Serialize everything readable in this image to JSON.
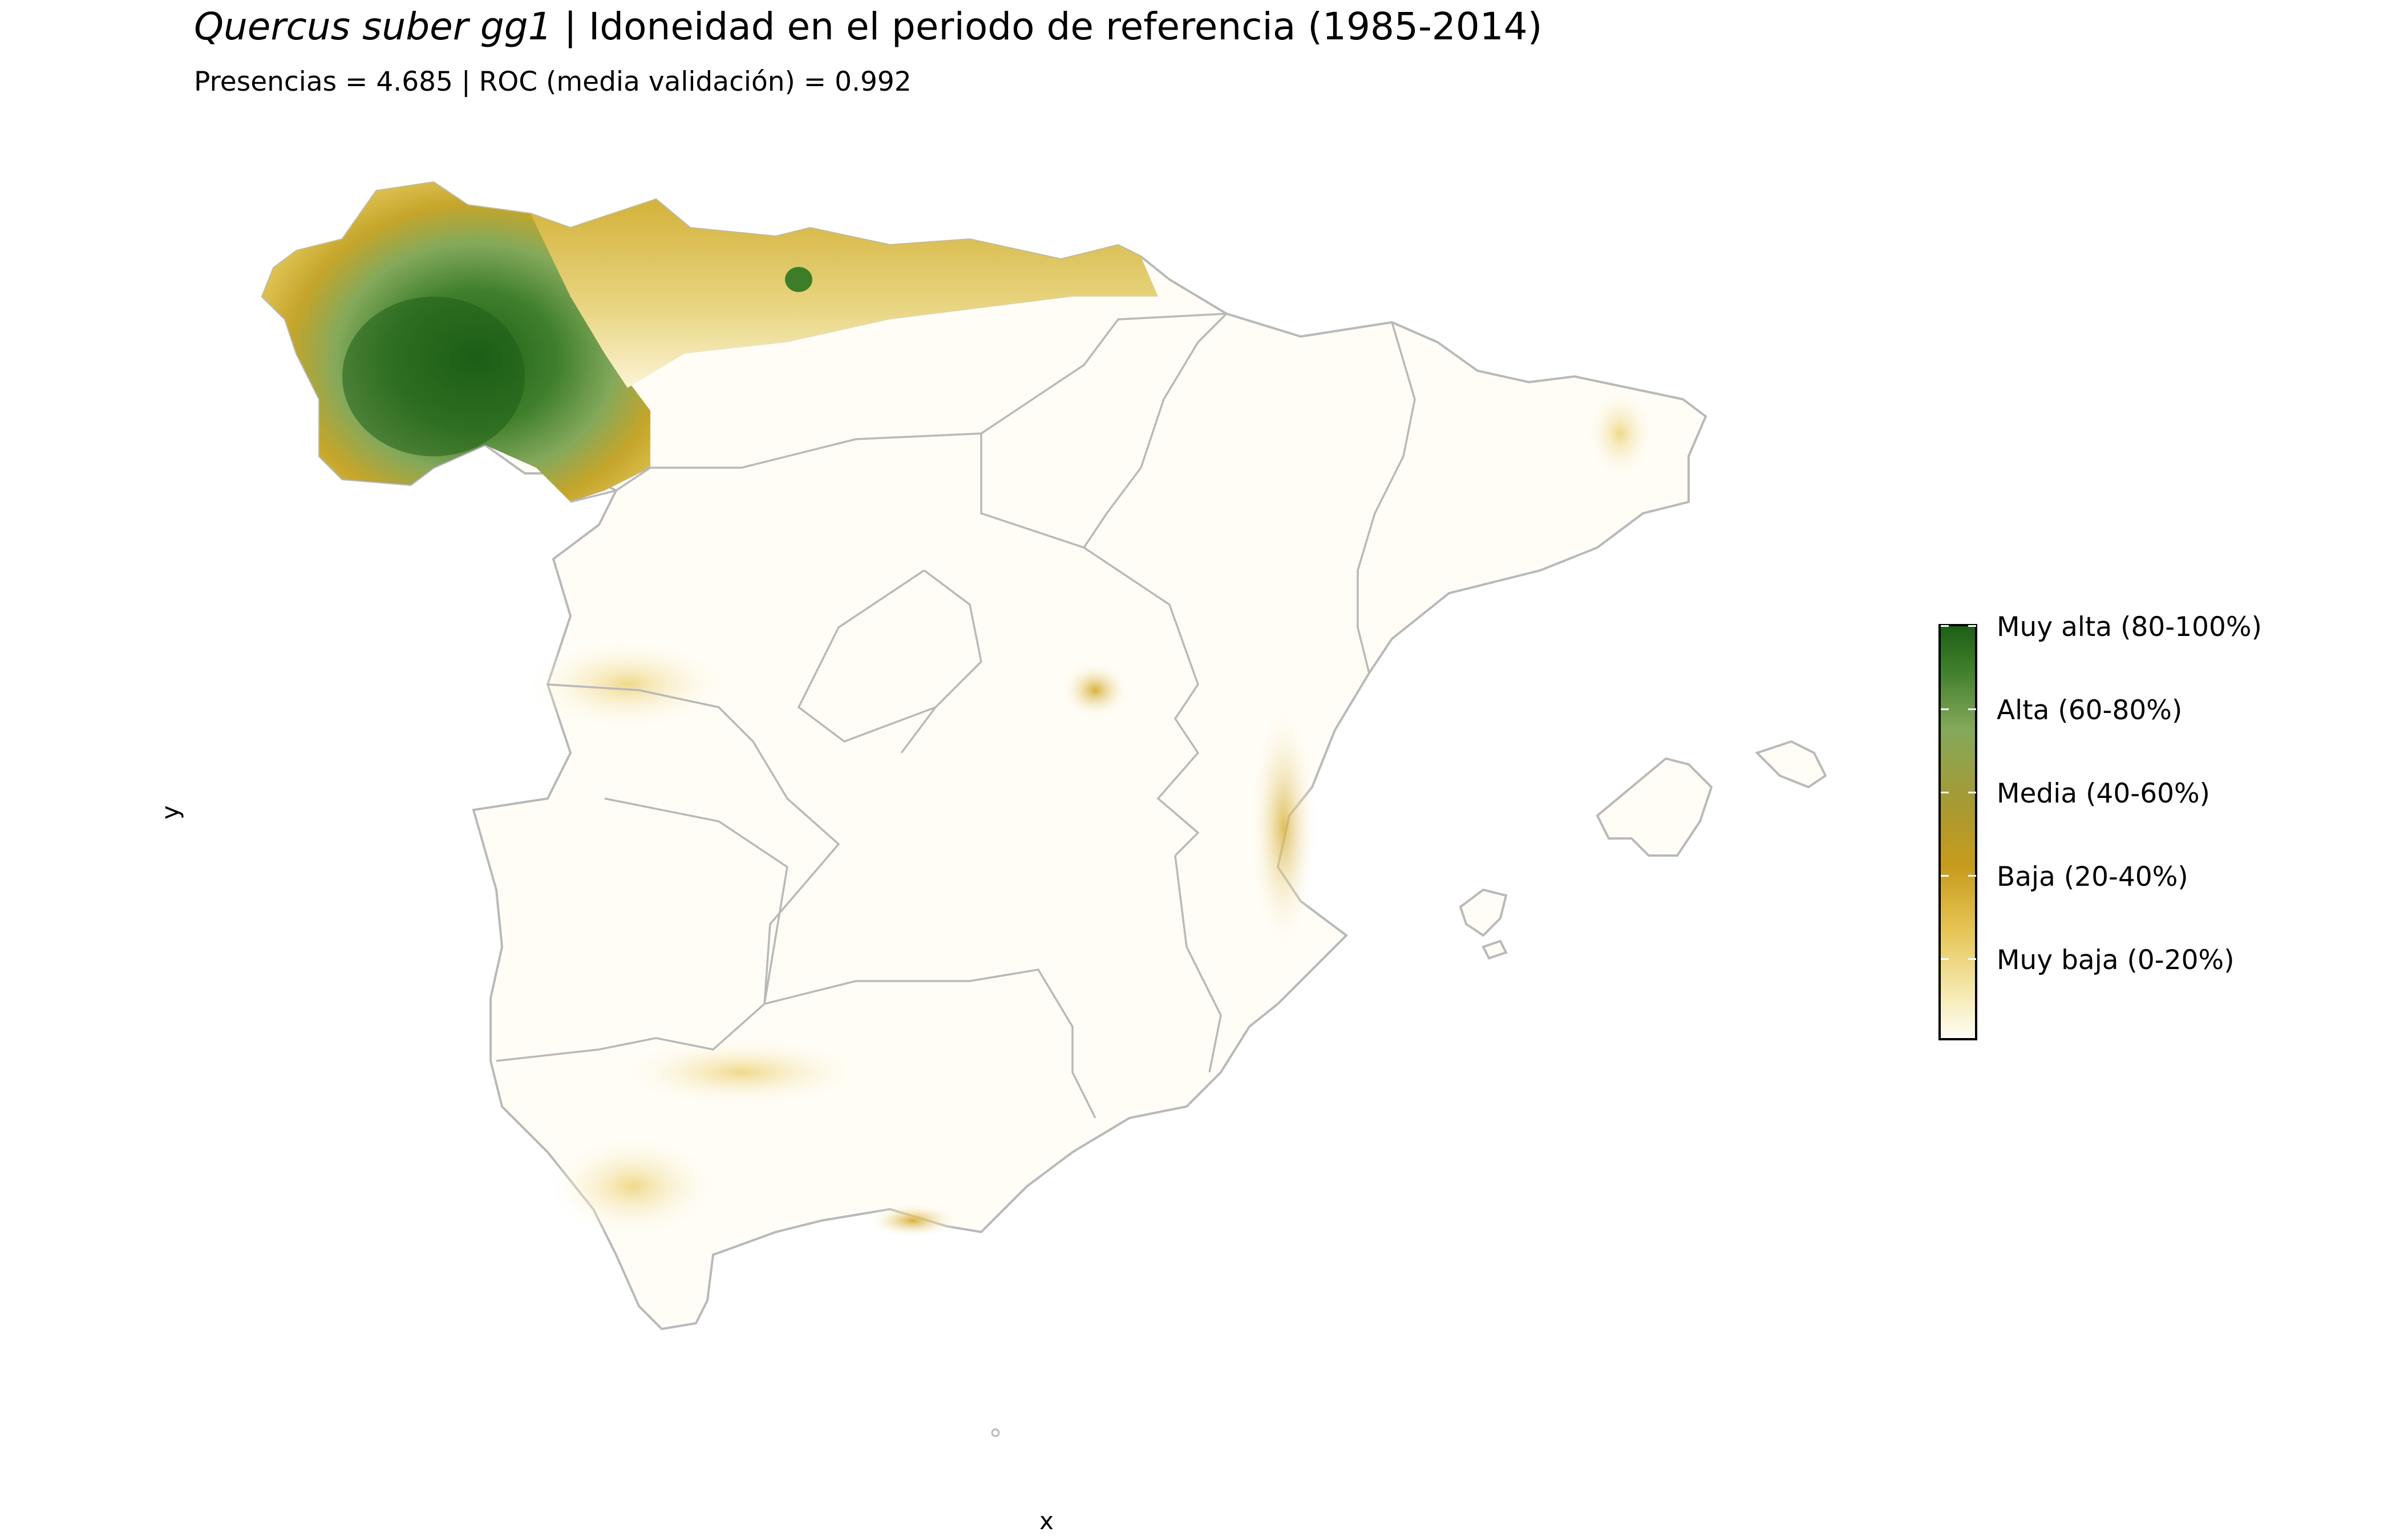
{
  "header": {
    "title_species": "Quercus suber gg1",
    "title_rest": " | Idoneidad en el periodo de referencia (1985-2014)",
    "subtitle": "Presencias = 4.685  |  ROC (media validación) = 0.992"
  },
  "axes": {
    "xlabel": "x",
    "ylabel": "y"
  },
  "legend": {
    "items": [
      {
        "label": "Muy alta (80-100%)",
        "color": "#1e5e17"
      },
      {
        "label": "Alta (60-80%)",
        "color": "#84a95b"
      },
      {
        "label": "Media (40-60%)",
        "color": "#a59a35"
      },
      {
        "label": "Baja (20-40%)",
        "color": "#c79b1c"
      },
      {
        "label": "Muy baja (0-20%)",
        "color": "#e6c556"
      }
    ]
  },
  "colors": {
    "border": "#b9b9b9",
    "land_base": "#fffdf6"
  }
}
